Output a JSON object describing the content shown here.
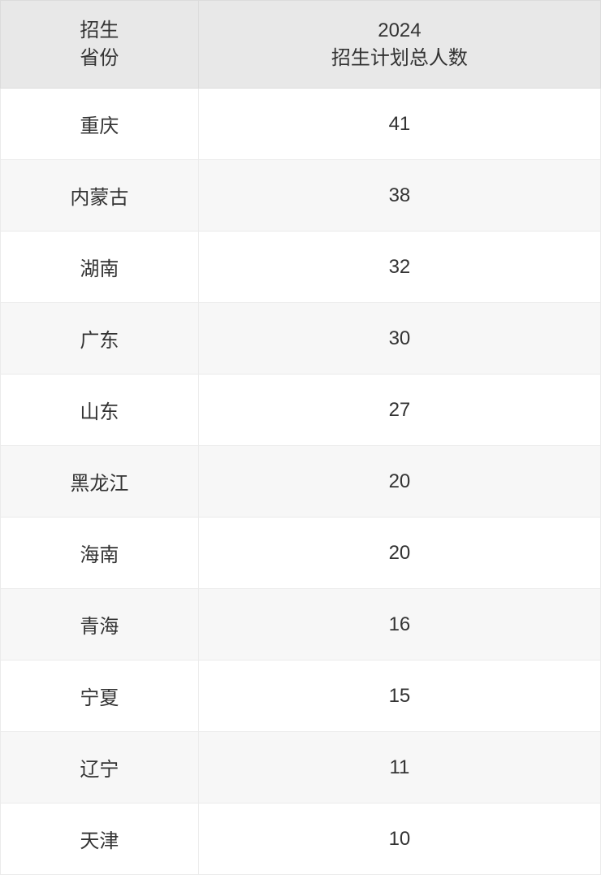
{
  "table": {
    "columns": [
      {
        "line1": "招生",
        "line2": "省份"
      },
      {
        "line1": "2024",
        "line2": "招生计划总人数"
      }
    ],
    "rows": [
      {
        "province": "重庆",
        "count": "41"
      },
      {
        "province": "内蒙古",
        "count": "38"
      },
      {
        "province": "湖南",
        "count": "32"
      },
      {
        "province": "广东",
        "count": "30"
      },
      {
        "province": "山东",
        "count": "27"
      },
      {
        "province": "黑龙江",
        "count": "20"
      },
      {
        "province": "海南",
        "count": "20"
      },
      {
        "province": "青海",
        "count": "16"
      },
      {
        "province": "宁夏",
        "count": "15"
      },
      {
        "province": "辽宁",
        "count": "11"
      },
      {
        "province": "天津",
        "count": "10"
      }
    ],
    "header_bg": "#e8e8e8",
    "row_odd_bg": "#ffffff",
    "row_even_bg": "#f7f7f7",
    "border_color": "#ebebeb",
    "text_color": "#333333",
    "font_size": 24,
    "col1_width_pct": 33,
    "col2_width_pct": 67
  }
}
